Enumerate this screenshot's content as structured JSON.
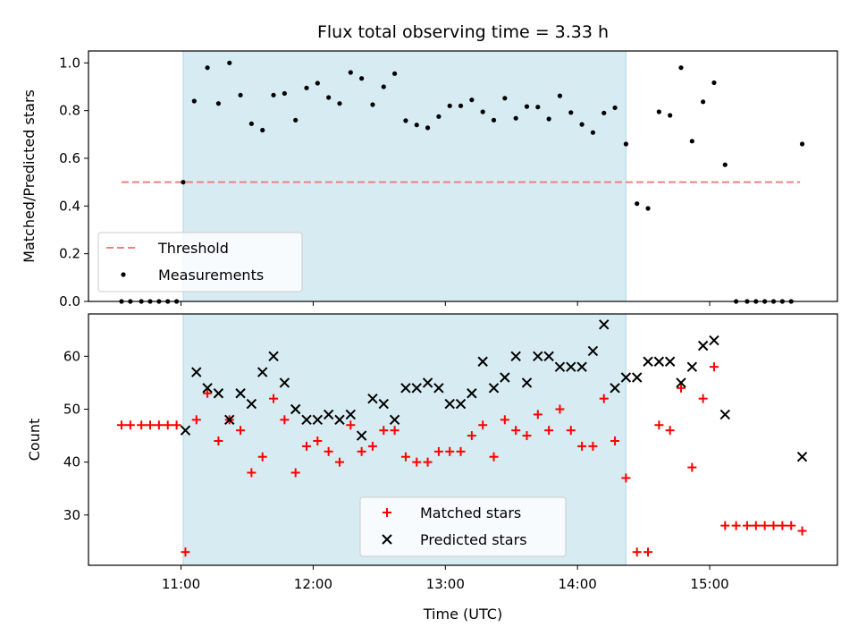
{
  "chart_data": [
    {
      "type": "scatter",
      "title": "Flux total observing time = 3.33 h",
      "xlabel": "",
      "ylabel": "Matched/Predicted stars",
      "ylim": [
        0,
        1.05
      ],
      "yticks": [
        "0.0",
        "0.2",
        "0.4",
        "0.6",
        "0.8",
        "1.0"
      ],
      "x_range": [
        "10:18",
        "15:58"
      ],
      "xticks": [
        "11:00",
        "12:00",
        "13:00",
        "14:00",
        "15:00"
      ],
      "shaded_interval": [
        "11:01",
        "14:22"
      ],
      "legend_position": "lower-left",
      "threshold": {
        "name": "Threshold",
        "value": 0.5,
        "x_start": "10:33",
        "x_end": "15:41",
        "color": "#f08080"
      },
      "series": [
        {
          "name": "Measurements",
          "color": "#000000",
          "points": [
            [
              "10:33",
              0
            ],
            [
              "10:37",
              0
            ],
            [
              "10:42",
              0
            ],
            [
              "10:46",
              0
            ],
            [
              "10:50",
              0
            ],
            [
              "10:54",
              0
            ],
            [
              "10:58",
              0
            ],
            [
              "11:01",
              0.5
            ],
            [
              "11:06",
              0.84
            ],
            [
              "11:12",
              0.98
            ],
            [
              "11:17",
              0.83
            ],
            [
              "11:22",
              1.0
            ],
            [
              "11:27",
              0.865
            ],
            [
              "11:32",
              0.745
            ],
            [
              "11:37",
              0.718
            ],
            [
              "11:42",
              0.865
            ],
            [
              "11:47",
              0.872
            ],
            [
              "11:52",
              0.76
            ],
            [
              "11:57",
              0.895
            ],
            [
              "12:02",
              0.915
            ],
            [
              "12:07",
              0.855
            ],
            [
              "12:12",
              0.83
            ],
            [
              "12:17",
              0.96
            ],
            [
              "12:22",
              0.935
            ],
            [
              "12:27",
              0.825
            ],
            [
              "12:32",
              0.9
            ],
            [
              "12:37",
              0.955
            ],
            [
              "12:42",
              0.758
            ],
            [
              "12:47",
              0.74
            ],
            [
              "12:52",
              0.728
            ],
            [
              "12:57",
              0.775
            ],
            [
              "13:02",
              0.82
            ],
            [
              "13:07",
              0.82
            ],
            [
              "13:12",
              0.845
            ],
            [
              "13:17",
              0.795
            ],
            [
              "13:22",
              0.76
            ],
            [
              "13:27",
              0.852
            ],
            [
              "13:32",
              0.768
            ],
            [
              "13:37",
              0.817
            ],
            [
              "13:42",
              0.815
            ],
            [
              "13:47",
              0.765
            ],
            [
              "13:52",
              0.862
            ],
            [
              "13:57",
              0.792
            ],
            [
              "14:02",
              0.742
            ],
            [
              "14:07",
              0.708
            ],
            [
              "14:12",
              0.79
            ],
            [
              "14:17",
              0.812
            ],
            [
              "14:22",
              0.66
            ],
            [
              "14:27",
              0.41
            ],
            [
              "14:32",
              0.39
            ],
            [
              "14:37",
              0.795
            ],
            [
              "14:42",
              0.78
            ],
            [
              "14:47",
              0.98
            ],
            [
              "14:52",
              0.672
            ],
            [
              "14:57",
              0.837
            ],
            [
              "15:02",
              0.917
            ],
            [
              "15:07",
              0.573
            ],
            [
              "15:12",
              0
            ],
            [
              "15:17",
              0
            ],
            [
              "15:21",
              0
            ],
            [
              "15:25",
              0
            ],
            [
              "15:29",
              0
            ],
            [
              "15:33",
              0
            ],
            [
              "15:37",
              0
            ],
            [
              "15:42",
              0.66
            ]
          ]
        }
      ]
    },
    {
      "type": "scatter",
      "title": "",
      "xlabel": "Time (UTC)",
      "ylabel": "Count",
      "ylim": [
        20.5,
        68
      ],
      "yticks": [
        "30",
        "40",
        "50",
        "60"
      ],
      "x_range": [
        "10:18",
        "15:58"
      ],
      "xticks": [
        "11:00",
        "12:00",
        "13:00",
        "14:00",
        "15:00"
      ],
      "shaded_interval": [
        "11:01",
        "14:22"
      ],
      "legend_position": "lower-center",
      "series": [
        {
          "name": "Matched stars",
          "marker": "plus",
          "color": "#ff0000",
          "points": [
            [
              "10:33",
              47
            ],
            [
              "10:37",
              47
            ],
            [
              "10:42",
              47
            ],
            [
              "10:46",
              47
            ],
            [
              "10:50",
              47
            ],
            [
              "10:54",
              47
            ],
            [
              "10:58",
              47
            ],
            [
              "11:02",
              23
            ],
            [
              "11:07",
              48
            ],
            [
              "11:12",
              53
            ],
            [
              "11:17",
              44
            ],
            [
              "11:22",
              48
            ],
            [
              "11:27",
              46
            ],
            [
              "11:32",
              38
            ],
            [
              "11:37",
              41
            ],
            [
              "11:42",
              52
            ],
            [
              "11:47",
              48
            ],
            [
              "11:52",
              38
            ],
            [
              "11:57",
              43
            ],
            [
              "12:02",
              44
            ],
            [
              "12:07",
              42
            ],
            [
              "12:12",
              40
            ],
            [
              "12:17",
              47
            ],
            [
              "12:22",
              42
            ],
            [
              "12:27",
              43
            ],
            [
              "12:32",
              46
            ],
            [
              "12:37",
              46
            ],
            [
              "12:42",
              41
            ],
            [
              "12:47",
              40
            ],
            [
              "12:52",
              40
            ],
            [
              "12:57",
              42
            ],
            [
              "13:02",
              42
            ],
            [
              "13:07",
              42
            ],
            [
              "13:12",
              45
            ],
            [
              "13:17",
              47
            ],
            [
              "13:22",
              41
            ],
            [
              "13:27",
              48
            ],
            [
              "13:32",
              46
            ],
            [
              "13:37",
              45
            ],
            [
              "13:42",
              49
            ],
            [
              "13:47",
              46
            ],
            [
              "13:52",
              50
            ],
            [
              "13:57",
              46
            ],
            [
              "14:02",
              43
            ],
            [
              "14:07",
              43
            ],
            [
              "14:12",
              52
            ],
            [
              "14:17",
              44
            ],
            [
              "14:22",
              37
            ],
            [
              "14:27",
              23
            ],
            [
              "14:32",
              23
            ],
            [
              "14:37",
              47
            ],
            [
              "14:42",
              46
            ],
            [
              "14:47",
              54
            ],
            [
              "14:52",
              39
            ],
            [
              "14:57",
              52
            ],
            [
              "15:02",
              58
            ],
            [
              "15:07",
              28
            ],
            [
              "15:12",
              28
            ],
            [
              "15:17",
              28
            ],
            [
              "15:21",
              28
            ],
            [
              "15:25",
              28
            ],
            [
              "15:29",
              28
            ],
            [
              "15:33",
              28
            ],
            [
              "15:37",
              28
            ],
            [
              "15:42",
              27
            ]
          ]
        },
        {
          "name": "Predicted stars",
          "marker": "x",
          "color": "#000000",
          "points": [
            [
              "11:02",
              46
            ],
            [
              "11:07",
              57
            ],
            [
              "11:12",
              54
            ],
            [
              "11:17",
              53
            ],
            [
              "11:22",
              48
            ],
            [
              "11:27",
              53
            ],
            [
              "11:32",
              51
            ],
            [
              "11:37",
              57
            ],
            [
              "11:42",
              60
            ],
            [
              "11:47",
              55
            ],
            [
              "11:52",
              50
            ],
            [
              "11:57",
              48
            ],
            [
              "12:02",
              48
            ],
            [
              "12:07",
              49
            ],
            [
              "12:12",
              48
            ],
            [
              "12:17",
              49
            ],
            [
              "12:22",
              45
            ],
            [
              "12:27",
              52
            ],
            [
              "12:32",
              51
            ],
            [
              "12:37",
              48
            ],
            [
              "12:42",
              54
            ],
            [
              "12:47",
              54
            ],
            [
              "12:52",
              55
            ],
            [
              "12:57",
              54
            ],
            [
              "13:02",
              51
            ],
            [
              "13:07",
              51
            ],
            [
              "13:12",
              53
            ],
            [
              "13:17",
              59
            ],
            [
              "13:22",
              54
            ],
            [
              "13:27",
              56
            ],
            [
              "13:32",
              60
            ],
            [
              "13:37",
              55
            ],
            [
              "13:42",
              60
            ],
            [
              "13:47",
              60
            ],
            [
              "13:52",
              58
            ],
            [
              "13:57",
              58
            ],
            [
              "14:02",
              58
            ],
            [
              "14:07",
              61
            ],
            [
              "14:12",
              66
            ],
            [
              "14:17",
              54
            ],
            [
              "14:22",
              56
            ],
            [
              "14:27",
              56
            ],
            [
              "14:32",
              59
            ],
            [
              "14:37",
              59
            ],
            [
              "14:42",
              59
            ],
            [
              "14:47",
              55
            ],
            [
              "14:52",
              58
            ],
            [
              "14:57",
              62
            ],
            [
              "15:02",
              63
            ],
            [
              "15:07",
              49
            ],
            [
              "15:42",
              41
            ]
          ]
        }
      ]
    }
  ]
}
